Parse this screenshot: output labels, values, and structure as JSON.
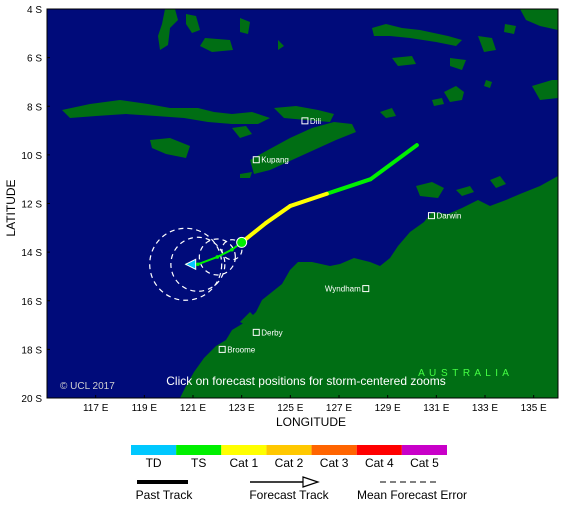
{
  "map": {
    "axes": {
      "y_label": "LATITUDE",
      "x_label": "LONGITUDE",
      "lat_ticks": [
        "4 S",
        "6 S",
        "8 S",
        "10 S",
        "12 S",
        "14 S",
        "16 S",
        "18 S",
        "20 S"
      ],
      "lon_ticks": [
        "117 E",
        "119 E",
        "121 E",
        "123 E",
        "125 E",
        "127 E",
        "129 E",
        "131 E",
        "133 E",
        "135 E"
      ],
      "lat_range": [
        -4,
        -20
      ],
      "lon_range": [
        115,
        136
      ]
    },
    "colors": {
      "ocean": "#000b7a",
      "land": "#006e14"
    },
    "cities": [
      {
        "name": "Dili",
        "lon": 125.6,
        "lat": -8.6
      },
      {
        "name": "Kupang",
        "lon": 123.6,
        "lat": -10.2
      },
      {
        "name": "Darwin",
        "lon": 130.8,
        "lat": -12.5
      },
      {
        "name": "Wyndham",
        "lon": 128.1,
        "lat": -15.5
      },
      {
        "name": "Derby",
        "lon": 123.6,
        "lat": -17.3
      },
      {
        "name": "Broome",
        "lon": 122.2,
        "lat": -18.0
      }
    ],
    "region_label": "A U S T R A L I A",
    "copyright": "© UCL 2017",
    "instruction": "Click on forecast positions for storm-centered zooms"
  },
  "track": {
    "past": [
      {
        "lon": 130.2,
        "lat": -9.6,
        "category": "TS"
      },
      {
        "lon": 128.3,
        "lat": -11.0,
        "category": "TS"
      },
      {
        "lon": 126.5,
        "lat": -11.6,
        "category": "TS"
      },
      {
        "lon": 125.0,
        "lat": -12.1,
        "category": "Cat 1"
      },
      {
        "lon": 124.0,
        "lat": -12.8,
        "category": "Cat 1"
      },
      {
        "lon": 123.0,
        "lat": -13.6,
        "category": "Cat 1"
      }
    ],
    "current": {
      "lon": 123.0,
      "lat": -13.6
    },
    "forecast": [
      {
        "lon": 123.0,
        "lat": -13.6
      },
      {
        "lon": 122.6,
        "lat": -13.9
      },
      {
        "lon": 122.0,
        "lat": -14.2
      },
      {
        "lon": 121.2,
        "lat": -14.5
      },
      {
        "lon": 120.7,
        "lat": -14.5
      }
    ]
  },
  "legend": {
    "categories": [
      {
        "label": "TD",
        "color": "#00c8ff"
      },
      {
        "label": "TS",
        "color": "#00f000"
      },
      {
        "label": "Cat 1",
        "color": "#ffff00"
      },
      {
        "label": "Cat 2",
        "color": "#ffc800"
      },
      {
        "label": "Cat 3",
        "color": "#ff6400"
      },
      {
        "label": "Cat 4",
        "color": "#ff0000"
      },
      {
        "label": "Cat 5",
        "color": "#c800c8"
      }
    ],
    "past_track_label": "Past Track",
    "forecast_track_label": "Forecast Track",
    "mean_error_label": "Mean Forecast Error"
  }
}
